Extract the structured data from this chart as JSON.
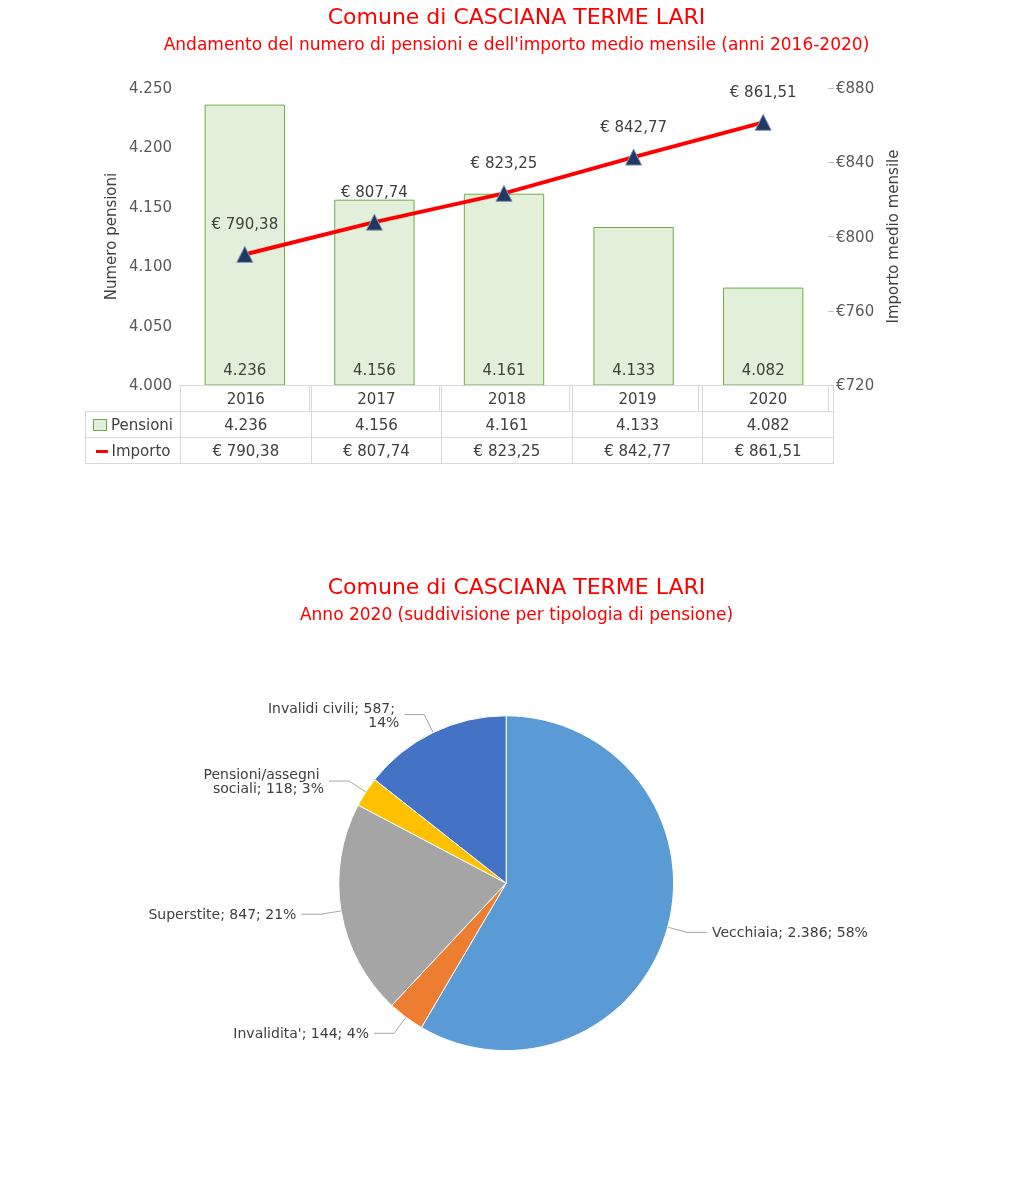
{
  "chart_data": [
    {
      "type": "bar",
      "title": "Comune di CASCIANA TERME LARI",
      "subtitle": "Andamento del numero di pensioni e dell'importo medio mensile (anni 2016-2020)",
      "ylabel": "Numero pensioni",
      "y2label": "Importo medio mensile",
      "categories": [
        "2016",
        "2017",
        "2018",
        "2019",
        "2020"
      ],
      "series": [
        {
          "name": "Pensioni",
          "type": "bar",
          "color": "#e2efda",
          "values": [
            4236,
            4156,
            4161,
            4133,
            4082
          ],
          "value_labels": [
            "4.236",
            "4.156",
            "4.161",
            "4.133",
            "4.082"
          ]
        },
        {
          "name": "Importo",
          "type": "line",
          "axis": "y2",
          "color": "#ff0000",
          "colors": [
            "#1f3864",
            "#1f3864",
            "#1f3864",
            "#1f3864",
            "#1f3864"
          ],
          "marker": "triangle",
          "values": [
            790.38,
            807.74,
            823.25,
            842.77,
            861.51
          ],
          "value_labels": [
            "€ 790,38",
            "€ 807,74",
            "€ 823,25",
            "€ 842,77",
            "€ 861,51"
          ]
        }
      ],
      "ylim": [
        4000,
        4250
      ],
      "yticks": [
        {
          "value": 4000,
          "label": "4.000"
        },
        {
          "value": 4050,
          "label": "4.050"
        },
        {
          "value": 4100,
          "label": "4.100"
        },
        {
          "value": 4150,
          "label": "4.150"
        },
        {
          "value": 4200,
          "label": "4.200"
        },
        {
          "value": 4250,
          "label": "4.250"
        }
      ],
      "y2lim": [
        720,
        880
      ],
      "y2ticks": [
        {
          "value": 720,
          "label": "€720"
        },
        {
          "value": 760,
          "label": "€760"
        },
        {
          "value": 800,
          "label": "€800"
        },
        {
          "value": 840,
          "label": "€840"
        },
        {
          "value": 880,
          "label": "€880"
        }
      ],
      "data_labels": true,
      "legend": "bottom left"
    },
    {
      "type": "pie",
      "title": "Comune di CASCIANA TERME LARI",
      "subtitle": "Anno 2020 (suddivisione per tipologia di pensione)",
      "categories": [
        "Vecchiaia",
        "Invalidita'",
        "Superstite",
        "Pensioni/assegni sociali",
        "Invalidi civili"
      ],
      "values": [
        2386,
        144,
        847,
        118,
        587
      ],
      "colors": [
        "#5b9bd5",
        "#ed7d31",
        "#a5a5a5",
        "#ffc000",
        "#4472c4"
      ],
      "value_labels": [
        "2.386; 58%",
        "144; 4%",
        "847; 21%",
        "118; 3%",
        "587; 14%"
      ]
    }
  ]
}
